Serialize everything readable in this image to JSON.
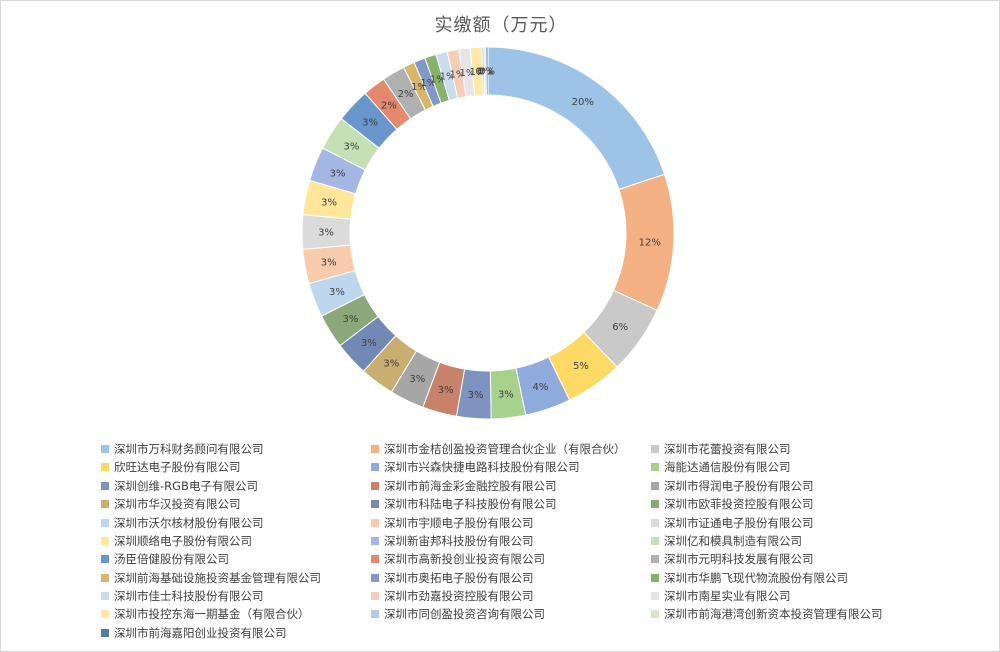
{
  "chart_data": {
    "type": "pie",
    "style": "donut",
    "title": "实缴额（万元）",
    "legend_position": "bottom",
    "categories": [
      "深圳市万科财务顾问有限公司",
      "深圳市金桔创盈投资管理合伙企业（有限合伙）",
      "深圳市花蕾投资有限公司",
      "欣旺达电子股份有限公司",
      "深圳市兴森快捷电路科技股份有限公司",
      "海能达通信股份有限公司",
      "深圳创维-RGB电子有限公司",
      "深圳市前海金彩金融控股有限公司",
      "深圳市得润电子股份有限公司",
      "深圳市华汉投资有限公司",
      "深圳市科陆电子科技股份有限公司",
      "深圳市欧菲投资控股有限公司",
      "深圳市沃尔核材股份有限公司",
      "深圳市宇顺电子股份有限公司",
      "深圳市证通电子股份有限公司",
      "深圳顺络电子股份有限公司",
      "深圳新宙邦科技股份有限公司",
      "深圳亿和模具制造有限公司",
      "汤臣倍健股份有限公司",
      "深圳市高新投创业投资有限公司",
      "深圳市元明科技发展有限公司",
      "深圳前海基础设施投资基金管理有限公司",
      "深圳市奥拓电子股份有限公司",
      "深圳市华鹏飞现代物流股份有限公司",
      "深圳市佳士科技股份有限公司",
      "深圳市劲嘉投资控股有限公司",
      "深圳市南星实业有限公司",
      "深圳市投控东海一期基金（有限合伙）",
      "深圳市同创盈投资咨询有限公司",
      "深圳市前海港湾创新资本投资管理有限公司",
      "深圳市前海嘉阳创业投资有限公司"
    ],
    "values": [
      20,
      12,
      6,
      5,
      4,
      3,
      3,
      3,
      3,
      3,
      3,
      3,
      3,
      3,
      3,
      3,
      3,
      3,
      3,
      2,
      2,
      1,
      1,
      1,
      1,
      1,
      1,
      1,
      0,
      0,
      0
    ],
    "value_labels": [
      "20%",
      "12%",
      "6%",
      "5%",
      "4%",
      "3%",
      "3%",
      "3%",
      "3%",
      "3%",
      "3%",
      "3%",
      "3%",
      "3%",
      "3%",
      "3%",
      "3%",
      "3%",
      "3%",
      "2%",
      "2%",
      "1%",
      "1%",
      "1%",
      "1%",
      "1%",
      "1%",
      "1%",
      "0%",
      "0%",
      "0%"
    ],
    "colors": [
      "#9dc3e6",
      "#f4b183",
      "#c9c9c9",
      "#ffd966",
      "#8faadc",
      "#a9d18e",
      "#7f93c0",
      "#c8826a",
      "#a6a6a6",
      "#c9ae72",
      "#7288b5",
      "#8aa879",
      "#bdd7ee",
      "#f8cbad",
      "#dbdbdb",
      "#ffe699",
      "#a4b7e3",
      "#c5e0b4",
      "#6a97cb",
      "#e5896e",
      "#b0b0b0",
      "#d9b56a",
      "#8497c9",
      "#86b26b",
      "#c9ddf0",
      "#f6cdb6",
      "#e5e5e5",
      "#ffe8a3",
      "#b4c7e7",
      "#d4e8c8",
      "#5b7aa0"
    ]
  }
}
